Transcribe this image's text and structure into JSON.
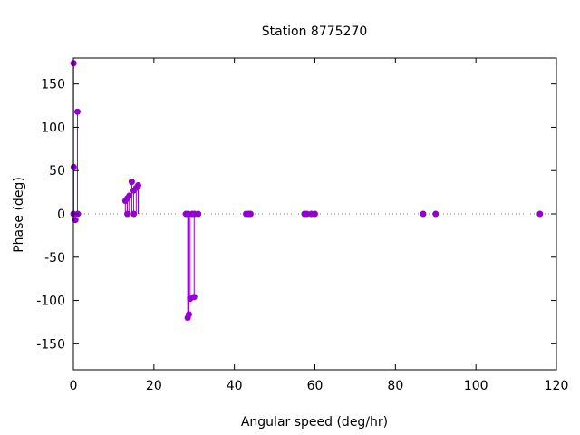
{
  "chart_data": {
    "type": "scatter",
    "style": "impulses-with-points",
    "title": "Station 8775270",
    "xlabel": "Angular speed (deg/hr)",
    "ylabel": "Phase (deg)",
    "xlim": [
      0,
      120
    ],
    "ylim": [
      -180,
      180
    ],
    "xticks": [
      0,
      20,
      40,
      60,
      80,
      100,
      120
    ],
    "yticks": [
      -150,
      -100,
      -50,
      0,
      50,
      100,
      150
    ],
    "grid": false,
    "legend": "none",
    "zero_line": "dotted",
    "series": [
      {
        "color": "#9400d3",
        "points": [
          {
            "x": 0.0,
            "y": 0
          },
          {
            "x": 0.04,
            "y": 174
          },
          {
            "x": 0.08,
            "y": 54
          },
          {
            "x": 0.5,
            "y": -7
          },
          {
            "x": 1.0,
            "y": 118
          },
          {
            "x": 1.1,
            "y": 0
          },
          {
            "x": 12.9,
            "y": 15
          },
          {
            "x": 13.4,
            "y": 0
          },
          {
            "x": 13.4,
            "y": 18
          },
          {
            "x": 13.9,
            "y": 21
          },
          {
            "x": 14.5,
            "y": 37
          },
          {
            "x": 14.96,
            "y": 27
          },
          {
            "x": 15.0,
            "y": 0
          },
          {
            "x": 15.6,
            "y": 30
          },
          {
            "x": 16.1,
            "y": 33
          },
          {
            "x": 27.97,
            "y": 0
          },
          {
            "x": 28.4,
            "y": -120
          },
          {
            "x": 28.5,
            "y": 0
          },
          {
            "x": 28.7,
            "y": -116
          },
          {
            "x": 29.0,
            "y": -98
          },
          {
            "x": 29.5,
            "y": 0
          },
          {
            "x": 30.0,
            "y": -96
          },
          {
            "x": 30.1,
            "y": 0
          },
          {
            "x": 31.0,
            "y": 0
          },
          {
            "x": 42.9,
            "y": 0
          },
          {
            "x": 43.5,
            "y": 0
          },
          {
            "x": 44.0,
            "y": 0
          },
          {
            "x": 57.4,
            "y": 0
          },
          {
            "x": 58.0,
            "y": 0
          },
          {
            "x": 59.1,
            "y": 0
          },
          {
            "x": 60.0,
            "y": 0
          },
          {
            "x": 86.9,
            "y": 0
          },
          {
            "x": 90.0,
            "y": 0
          },
          {
            "x": 115.9,
            "y": 0
          }
        ]
      }
    ]
  }
}
